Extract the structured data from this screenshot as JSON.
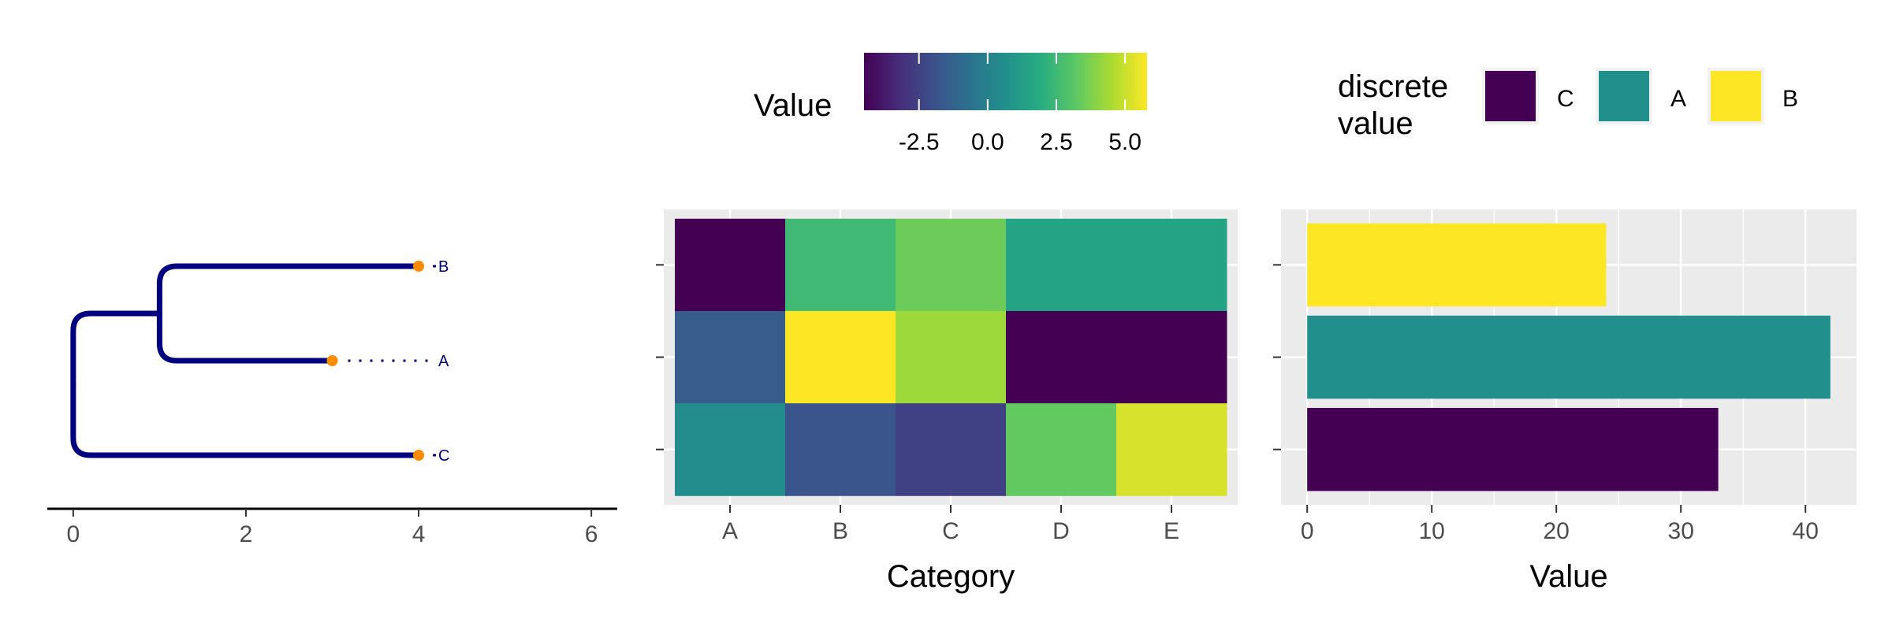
{
  "chart_data": [
    {
      "type": "tree",
      "tips": [
        {
          "label": "B",
          "x": 4,
          "y": 3
        },
        {
          "label": "A",
          "x": 3,
          "y": 2
        },
        {
          "label": "C",
          "x": 4,
          "y": 1
        }
      ],
      "internal_nodes": [
        {
          "id": "n_ab",
          "x": 1,
          "children": [
            "B",
            "A"
          ]
        },
        {
          "id": "root",
          "x": 0,
          "children": [
            "n_ab",
            "C"
          ]
        }
      ],
      "x_ticks": [
        0,
        2,
        4,
        6
      ],
      "x_tick_labels": [
        "0",
        "2",
        "4",
        "6"
      ],
      "xlim": [
        -0.3,
        6.3
      ],
      "branch_color": "#000080",
      "tip_point_color": "#FF8C00",
      "tip_label_color": "#000080"
    },
    {
      "type": "heatmap",
      "categories": [
        "A",
        "B",
        "C",
        "D",
        "E"
      ],
      "rows": 3,
      "values": [
        [
          -4.5,
          2.5,
          3.5,
          1.5,
          1.5
        ],
        [
          -1.5,
          5.8,
          4.3,
          -4.5,
          -4.5
        ],
        [
          0.5,
          -1.8,
          -2.5,
          3.3,
          5.2
        ]
      ],
      "xlabel": "Category",
      "colorbar": {
        "title": "Value",
        "ticks": [
          -2.5,
          0.0,
          2.5,
          5.0
        ],
        "tick_labels": [
          "-2.5",
          "0.0",
          "2.5",
          "5.0"
        ],
        "range": [
          -4.5,
          5.8
        ],
        "colormap": "viridis"
      }
    },
    {
      "type": "bar",
      "orientation": "horizontal",
      "categories": [
        "C",
        "A",
        "B"
      ],
      "values": [
        33,
        42,
        24
      ],
      "colors": [
        "#440154",
        "#21908C",
        "#FDE725"
      ],
      "xlabel": "Value",
      "x_ticks": [
        0,
        10,
        20,
        30,
        40
      ],
      "x_tick_labels": [
        "0",
        "10",
        "20",
        "30",
        "40"
      ],
      "xlim": [
        -2.1,
        44.1
      ],
      "legend": {
        "title_lines": [
          "discrete",
          "value"
        ],
        "entries": [
          {
            "label": "C",
            "color": "#440154"
          },
          {
            "label": "A",
            "color": "#21908C"
          },
          {
            "label": "B",
            "color": "#FDE725"
          }
        ],
        "placement": "top"
      }
    }
  ]
}
